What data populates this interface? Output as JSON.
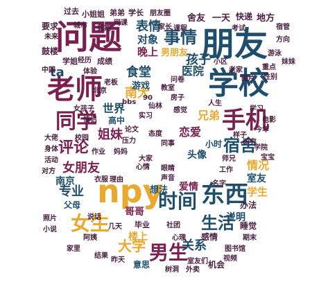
{
  "word_cloud": {
    "shape": "face-mask",
    "palette": [
      "#7a1f4f",
      "#1e4e6b",
      "#e8a92e",
      "#4a1e3f"
    ],
    "words": [
      {
        "text": "朋友",
        "color": "#1e4e6b"
      },
      {
        "text": "问题",
        "color": "#7a1f4f"
      },
      {
        "text": "学校",
        "color": "#1e4e6b"
      },
      {
        "text": "老师",
        "color": "#7a1f4f"
      },
      {
        "text": "npy",
        "color": "#e8a92e"
      },
      {
        "text": "手机",
        "color": "#7a1f4f"
      },
      {
        "text": "东西",
        "color": "#1e4e6b"
      },
      {
        "text": "同学",
        "color": "#7a1f4f"
      },
      {
        "text": "事情",
        "color": "#1e4e6b"
      },
      {
        "text": "时间",
        "color": "#1e4e6b"
      },
      {
        "text": "宿舍",
        "color": "#1e4e6b"
      },
      {
        "text": "男生",
        "color": "#7a1f4f"
      },
      {
        "text": "女生",
        "color": "#e8a92e"
      },
      {
        "text": "生活",
        "color": "#1e4e6b"
      },
      {
        "text": "表情",
        "color": "#1e4e6b"
      },
      {
        "text": "孩子",
        "color": "#1e4e6b"
      },
      {
        "text": "评论",
        "color": "#7a1f4f"
      },
      {
        "text": "南大",
        "color": "#e8a92e"
      },
      {
        "text": "食堂",
        "color": "#1e4e6b"
      },
      {
        "text": "姐妹",
        "color": "#7a1f4f"
      },
      {
        "text": "大学",
        "color": "#e8a92e"
      },
      {
        "text": "情况",
        "color": "#e8a92e"
      },
      {
        "text": "世界",
        "color": "#1e4e6b"
      },
      {
        "text": "医院",
        "color": "#1e4e6b"
      },
      {
        "text": "恋爱",
        "color": "#7a1f4f"
      },
      {
        "text": "专业",
        "color": "#1e4e6b"
      },
      {
        "text": "ta",
        "color": "#1e4e6b"
      },
      {
        "text": "兄弟",
        "color": "#e8a92e"
      },
      {
        "text": "对象",
        "color": "#1e4e6b"
      },
      {
        "text": "晚上",
        "color": "#7a1f4f"
      },
      {
        "text": "关系",
        "color": "#1e4e6b"
      },
      {
        "text": "女朋友",
        "color": "#7a1f4f"
      },
      {
        "text": "南京",
        "color": "#1e4e6b"
      },
      {
        "text": "地方",
        "color": "#4a1e3f"
      },
      {
        "text": "舍友",
        "color": "#4a1e3f"
      },
      {
        "text": "一天",
        "color": "#4a1e3f"
      },
      {
        "text": "快递",
        "color": "#4a1e3f"
      },
      {
        "text": "要求",
        "color": "#4a1e3f"
      },
      {
        "text": "小姐姐",
        "color": "#4a1e3f"
      },
      {
        "text": "弟弟",
        "color": "#4a1e3f"
      },
      {
        "text": "学长",
        "color": "#4a1e3f"
      },
      {
        "text": "过去",
        "color": "#4a1e3f"
      },
      {
        "text": "男朋友",
        "color": "#e8a92e"
      },
      {
        "text": "游戏",
        "color": "#1e4e6b"
      },
      {
        "text": "高中",
        "color": "#1e4e6b"
      },
      {
        "text": "头像",
        "color": "#1e4e6b"
      },
      {
        "text": "小时",
        "color": "#1e4e6b"
      },
      {
        "text": "室友",
        "color": "#1e4e6b"
      },
      {
        "text": "学生",
        "color": "#e8a92e"
      },
      {
        "text": "父母",
        "color": "#1e4e6b"
      },
      {
        "text": "哥哥",
        "color": "#7a1f4f"
      },
      {
        "text": "想法",
        "color": "#1e4e6b"
      },
      {
        "text": "爱情",
        "color": "#7a1f4f"
      },
      {
        "text": "说明",
        "color": "#1e4e6b"
      },
      {
        "text": "楼上",
        "color": "#e8a92e"
      },
      {
        "text": "意思",
        "color": "#1e4e6b"
      },
      {
        "text": "感情",
        "color": "#4a1e3f"
      },
      {
        "text": "机会",
        "color": "#4a1e3f"
      },
      {
        "text": "办法",
        "color": "#4a1e3f"
      },
      {
        "text": "睡觉",
        "color": "#4a1e3f"
      },
      {
        "text": "鼓楼",
        "color": "#4a1e3f"
      },
      {
        "text": "学姐",
        "color": "#4a1e3f"
      },
      {
        "text": "成绩",
        "color": "#4a1e3f"
      },
      {
        "text": "中国",
        "color": "#4a1e3f"
      },
      {
        "text": "老板",
        "color": "#4a1e3f"
      },
      {
        "text": "女孩子",
        "color": "#4a1e3f"
      },
      {
        "text": "毕业",
        "color": "#4a1e3f"
      },
      {
        "text": "名字",
        "color": "#4a1e3f"
      },
      {
        "text": "工作",
        "color": "#4a1e3f"
      },
      {
        "text": "人生",
        "color": "#4a1e3f"
      },
      {
        "text": "学习",
        "color": "#4a1e3f"
      },
      {
        "text": "未来",
        "color": "#4a1e3f"
      },
      {
        "text": "重点",
        "color": "#4a1e3f"
      },
      {
        "text": "性别",
        "color": "#4a1e3f"
      },
      {
        "text": "电影",
        "color": "#4a1e3f"
      },
      {
        "text": "今年",
        "color": "#4a1e3f"
      },
      {
        "text": "昨天",
        "color": "#4a1e3f"
      },
      {
        "text": "阿姨",
        "color": "#4a1e3f"
      },
      {
        "text": "几天",
        "color": "#4a1e3f"
      },
      {
        "text": "说话",
        "color": "#4a1e3f"
      },
      {
        "text": "活动",
        "color": "#4a1e3f"
      },
      {
        "text": "大佬",
        "color": "#4a1e3f"
      },
      {
        "text": "家长",
        "color": "#4a1e3f"
      },
      {
        "text": "课程",
        "color": "#4a1e3f"
      },
      {
        "text": "考试",
        "color": "#4a1e3f"
      },
      {
        "text": "心情",
        "color": "#4a1e3f"
      },
      {
        "text": "体验",
        "color": "#4a1e3f"
      },
      {
        "text": "经历",
        "color": "#4a1e3f"
      },
      {
        "text": "同事",
        "color": "#4a1e3f"
      },
      {
        "text": "大家",
        "color": "#4a1e3f"
      },
      {
        "text": "师兄",
        "color": "#4a1e3f"
      },
      {
        "text": "研究",
        "color": "#4a1e3f"
      },
      {
        "text": "样子",
        "color": "#4a1e3f"
      },
      {
        "text": "北京",
        "color": "#4a1e3f"
      },
      {
        "text": "90",
        "color": "#4a1e3f"
      },
      {
        "text": "bbs",
        "color": "#4a1e3f"
      },
      {
        "text": "作业",
        "color": "#4a1e3f"
      },
      {
        "text": "妈妈",
        "color": "#4a1e3f"
      },
      {
        "text": "衣服",
        "color": "#4a1e3f"
      },
      {
        "text": "眼睛",
        "color": "#4a1e3f"
      },
      {
        "text": "感觉",
        "color": "#4a1e3f"
      },
      {
        "text": "理由",
        "color": "#4a1e3f"
      },
      {
        "text": "声音",
        "color": "#4a1e3f"
      },
      {
        "text": "态度",
        "color": "#4a1e3f"
      },
      {
        "text": "小区",
        "color": "#4a1e3f"
      },
      {
        "text": "老家",
        "color": "#4a1e3f"
      },
      {
        "text": "图片",
        "color": "#4a1e3f"
      },
      {
        "text": "论文",
        "color": "#4a1e3f"
      },
      {
        "text": "压力",
        "color": "#4a1e3f"
      },
      {
        "text": "校园",
        "color": "#4a1e3f"
      },
      {
        "text": "情侣",
        "color": "#4a1e3f"
      },
      {
        "text": "实习",
        "color": "#4a1e3f"
      },
      {
        "text": "仙林",
        "color": "#4a1e3f"
      },
      {
        "text": "教室",
        "color": "#4a1e3f"
      },
      {
        "text": "房子",
        "color": "#4a1e3f"
      },
      {
        "text": "问卷",
        "color": "#4a1e3f"
      },
      {
        "text": "网课",
        "color": "#4a1e3f"
      },
      {
        "text": "假期",
        "color": "#4a1e3f"
      },
      {
        "text": "城市",
        "color": "#4a1e3f"
      },
      {
        "text": "社团",
        "color": "#4a1e3f"
      },
      {
        "text": "心理",
        "color": "#4a1e3f"
      },
      {
        "text": "图书馆",
        "color": "#4a1e3f"
      },
      {
        "text": "视频",
        "color": "#4a1e3f"
      },
      {
        "text": "学院",
        "color": "#4a1e3f"
      },
      {
        "text": "宝宝",
        "color": "#4a1e3f"
      },
      {
        "text": "身体",
        "color": "#4a1e3f"
      },
      {
        "text": "对方",
        "color": "#4a1e3f"
      },
      {
        "text": "照片",
        "color": "#4a1e3f"
      },
      {
        "text": "小说",
        "color": "#4a1e3f"
      },
      {
        "text": "家里",
        "color": "#4a1e3f"
      },
      {
        "text": "结果",
        "color": "#4a1e3f"
      },
      {
        "text": "树洞",
        "color": "#4a1e3f"
      },
      {
        "text": "外卖",
        "color": "#4a1e3f"
      },
      {
        "text": "室友们",
        "color": "#4a1e3f"
      },
      {
        "text": "期末",
        "color": "#4a1e3f"
      },
      {
        "text": "朋友圈",
        "color": "#4a1e3f"
      },
      {
        "text": "宿管",
        "color": "#4a1e3f"
      },
      {
        "text": "方向",
        "color": "#4a1e3f"
      },
      {
        "text": "游泳",
        "color": "#4a1e3f"
      },
      {
        "text": "妹妹",
        "color": "#4a1e3f"
      }
    ]
  }
}
